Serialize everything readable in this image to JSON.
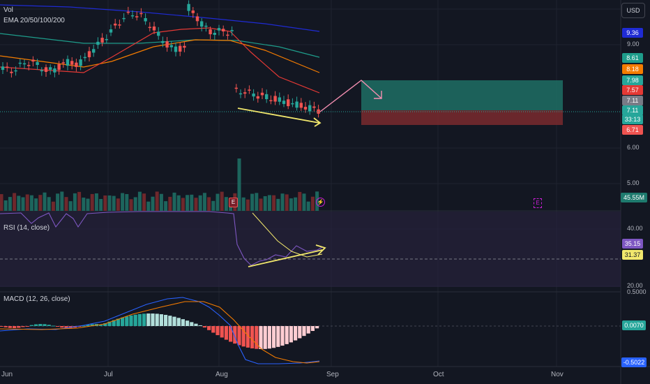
{
  "chart": {
    "indicator_labels": {
      "vol": "Vol",
      "ema": "EMA 20/50/100/200",
      "rsi": "RSI (14, close)",
      "macd": "MACD (12, 26, close)"
    },
    "currency": "USD",
    "price_axis_ticks": [
      "9.00",
      "6.00",
      "5.00"
    ],
    "price_tags": [
      {
        "label": "9.36",
        "bg": "#1f2bd4"
      },
      {
        "label": "8.61",
        "bg": "#1e9d8b"
      },
      {
        "label": "8.18",
        "bg": "#f57c00"
      },
      {
        "label": "7.98",
        "bg": "#26a69a"
      },
      {
        "label": "7.57",
        "bg": "#e53935"
      },
      {
        "label": "7.11",
        "bg": "#787b86"
      },
      {
        "label": "7.11",
        "bg": "#26a69a"
      },
      {
        "label": "33:13",
        "bg": "#26a69a"
      },
      {
        "label": "6.71",
        "bg": "#ef5350"
      }
    ],
    "volume_tag": {
      "label": "45.55M",
      "bg": "#1e7a6e"
    },
    "rsi_ticks": [
      "40.00",
      "20.00"
    ],
    "rsi_tags": [
      {
        "label": "35.15",
        "bg": "#7e57c2"
      },
      {
        "label": "31.37",
        "bg": "#f2e86d",
        "color": "#131722"
      }
    ],
    "macd_ticks": [
      "0.5000"
    ],
    "macd_tags": [
      {
        "label": "0.0070",
        "bg": "#26a69a"
      },
      {
        "label": "-0.5022",
        "bg": "#2962ff"
      }
    ],
    "date_ticks": [
      "Jun",
      "Jul",
      "Aug",
      "Sep",
      "Oct",
      "Nov"
    ],
    "earnings_marker": "E",
    "colors": {
      "background": "#131722",
      "up": "#26a69a",
      "down": "#ef5350",
      "ema20": "#e53935",
      "ema50": "#f57c00",
      "ema100": "#1e9d8b",
      "ema200": "#1f2bd4",
      "rsi": "#7e57c2",
      "trendline": "#f2e86d",
      "projection": "#f48fb1"
    }
  }
}
